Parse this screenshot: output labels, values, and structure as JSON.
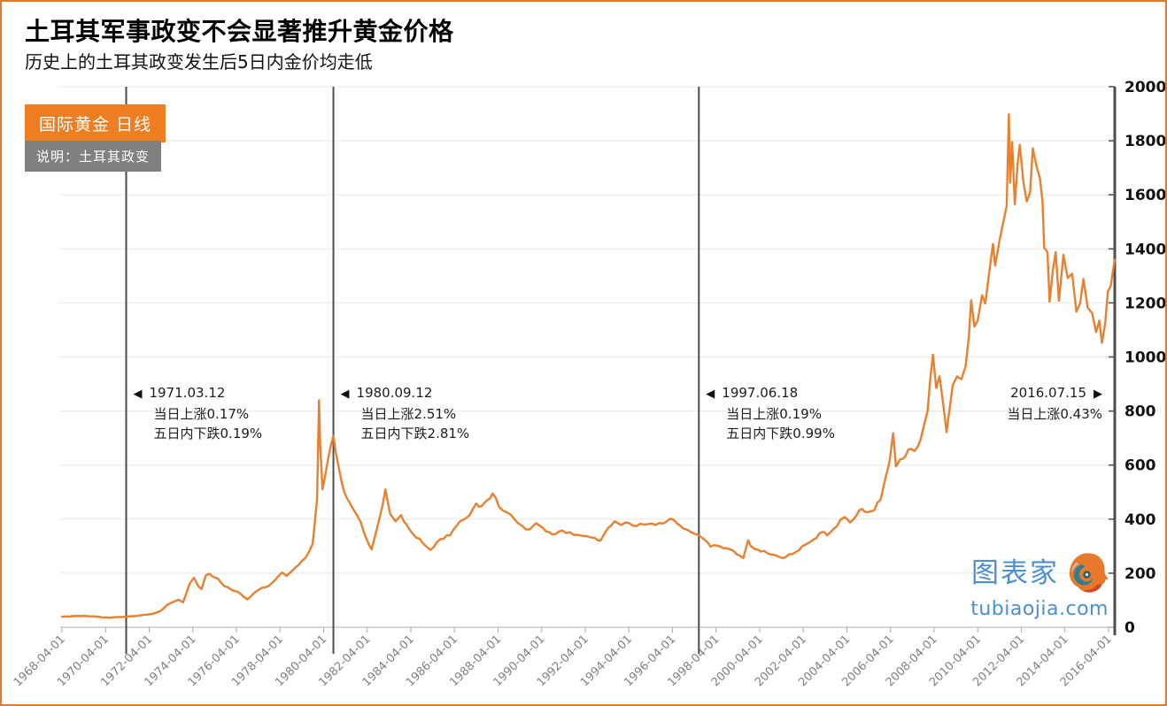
{
  "chart_data": {
    "type": "line",
    "title": "土耳其军事政变不会显著推升黄金价格",
    "subtitle": "历史上的土耳其政变发生后5日内金价均走低",
    "legend": "国际黄金  日线",
    "note": "说明：土耳其政变",
    "ylabel": "",
    "xlabel": "",
    "ylim": [
      0,
      2000
    ],
    "ytick_step": 200,
    "grid": "horizontal",
    "x_domain_years": [
      1968.25,
      2016.537
    ],
    "x_tick_labels": [
      "1968-04-01",
      "1970-04-01",
      "1972-04-01",
      "1974-04-01",
      "1976-04-01",
      "1978-04-01",
      "1980-04-01",
      "1982-04-01",
      "1984-04-01",
      "1986-04-01",
      "1988-04-01",
      "1990-04-01",
      "1992-04-01",
      "1994-04-01",
      "1996-04-01",
      "1998-04-01",
      "2000-04-01",
      "2002-04-01",
      "2004-04-01",
      "2006-04-01",
      "2008-04-01",
      "2010-04-01",
      "2012-04-01",
      "2014-04-01",
      "2016-04-01"
    ],
    "events": [
      {
        "date": "1971.03.12",
        "year": 1971.195,
        "arrow": "left",
        "lines": [
          "当日上涨0.17%",
          "五日内下跌0.19%"
        ]
      },
      {
        "date": "1980.09.12",
        "year": 1980.699,
        "arrow": "left",
        "lines": [
          "当日上涨2.51%",
          "五日内下跌2.81%"
        ]
      },
      {
        "date": "1997.06.18",
        "year": 1997.462,
        "arrow": "left",
        "lines": [
          "当日上涨0.19%",
          "五日内下跌0.99%"
        ]
      },
      {
        "date": "2016.07.15",
        "year": 2016.537,
        "arrow": "right",
        "lines": [
          "当日上涨0.43%"
        ]
      }
    ],
    "series": [
      {
        "name": "国际黄金 日线",
        "color": "#E8802F",
        "points": [
          [
            1968.25,
            39
          ],
          [
            1968.6,
            40
          ],
          [
            1969.0,
            42
          ],
          [
            1969.4,
            41
          ],
          [
            1969.8,
            40
          ],
          [
            1970.1,
            36
          ],
          [
            1970.5,
            36
          ],
          [
            1971.0,
            38
          ],
          [
            1971.2,
            39
          ],
          [
            1971.6,
            41
          ],
          [
            1972.0,
            46
          ],
          [
            1972.4,
            49
          ],
          [
            1972.8,
            62
          ],
          [
            1973.1,
            84
          ],
          [
            1973.4,
            95
          ],
          [
            1973.6,
            102
          ],
          [
            1973.8,
            92
          ],
          [
            1973.95,
            125
          ],
          [
            1974.1,
            160
          ],
          [
            1974.3,
            183
          ],
          [
            1974.5,
            152
          ],
          [
            1974.65,
            141
          ],
          [
            1974.85,
            192
          ],
          [
            1975.0,
            198
          ],
          [
            1975.2,
            186
          ],
          [
            1975.4,
            180
          ],
          [
            1975.7,
            152
          ],
          [
            1976.0,
            140
          ],
          [
            1976.3,
            132
          ],
          [
            1976.55,
            115
          ],
          [
            1976.75,
            103
          ],
          [
            1977.0,
            122
          ],
          [
            1977.3,
            140
          ],
          [
            1977.6,
            148
          ],
          [
            1977.9,
            165
          ],
          [
            1978.15,
            187
          ],
          [
            1978.35,
            203
          ],
          [
            1978.55,
            190
          ],
          [
            1978.85,
            212
          ],
          [
            1979.1,
            230
          ],
          [
            1979.4,
            255
          ],
          [
            1979.6,
            282
          ],
          [
            1979.75,
            310
          ],
          [
            1979.85,
            390
          ],
          [
            1979.95,
            475
          ],
          [
            1980.04,
            840
          ],
          [
            1980.1,
            660
          ],
          [
            1980.2,
            510
          ],
          [
            1980.33,
            565
          ],
          [
            1980.45,
            620
          ],
          [
            1980.6,
            680
          ],
          [
            1980.7,
            708
          ],
          [
            1980.78,
            660
          ],
          [
            1980.95,
            590
          ],
          [
            1981.2,
            500
          ],
          [
            1981.45,
            460
          ],
          [
            1981.7,
            425
          ],
          [
            1981.95,
            390
          ],
          [
            1982.2,
            330
          ],
          [
            1982.45,
            288
          ],
          [
            1982.65,
            350
          ],
          [
            1982.8,
            400
          ],
          [
            1982.95,
            450
          ],
          [
            1983.08,
            510
          ],
          [
            1983.3,
            420
          ],
          [
            1983.55,
            392
          ],
          [
            1983.8,
            415
          ],
          [
            1984.05,
            380
          ],
          [
            1984.35,
            345
          ],
          [
            1984.65,
            328
          ],
          [
            1984.95,
            300
          ],
          [
            1985.15,
            286
          ],
          [
            1985.45,
            315
          ],
          [
            1985.75,
            327
          ],
          [
            1986.05,
            340
          ],
          [
            1986.35,
            375
          ],
          [
            1986.65,
            398
          ],
          [
            1986.95,
            415
          ],
          [
            1987.25,
            458
          ],
          [
            1987.5,
            448
          ],
          [
            1987.75,
            470
          ],
          [
            1988.0,
            495
          ],
          [
            1988.3,
            445
          ],
          [
            1988.65,
            425
          ],
          [
            1989.0,
            400
          ],
          [
            1989.35,
            375
          ],
          [
            1989.7,
            362
          ],
          [
            1990.0,
            385
          ],
          [
            1990.3,
            368
          ],
          [
            1990.6,
            352
          ],
          [
            1990.9,
            345
          ],
          [
            1991.2,
            358
          ],
          [
            1991.55,
            352
          ],
          [
            1991.9,
            342
          ],
          [
            1992.3,
            337
          ],
          [
            1992.7,
            330
          ],
          [
            1992.95,
            320
          ],
          [
            1993.3,
            368
          ],
          [
            1993.6,
            392
          ],
          [
            1993.9,
            378
          ],
          [
            1994.25,
            386
          ],
          [
            1994.6,
            374
          ],
          [
            1994.95,
            380
          ],
          [
            1995.3,
            384
          ],
          [
            1995.65,
            386
          ],
          [
            1995.95,
            390
          ],
          [
            1996.15,
            402
          ],
          [
            1996.45,
            385
          ],
          [
            1996.75,
            365
          ],
          [
            1997.1,
            352
          ],
          [
            1997.462,
            340
          ],
          [
            1997.75,
            322
          ],
          [
            1998.0,
            298
          ],
          [
            1998.3,
            302
          ],
          [
            1998.6,
            292
          ],
          [
            1998.9,
            288
          ],
          [
            1999.2,
            270
          ],
          [
            1999.5,
            256
          ],
          [
            1999.72,
            322
          ],
          [
            1999.85,
            300
          ],
          [
            2000.05,
            288
          ],
          [
            2000.3,
            280
          ],
          [
            2000.6,
            274
          ],
          [
            2000.9,
            268
          ],
          [
            2001.15,
            260
          ],
          [
            2001.3,
            256
          ],
          [
            2001.6,
            270
          ],
          [
            2001.9,
            278
          ],
          [
            2002.2,
            300
          ],
          [
            2002.55,
            315
          ],
          [
            2002.85,
            330
          ],
          [
            2003.1,
            352
          ],
          [
            2003.35,
            340
          ],
          [
            2003.65,
            365
          ],
          [
            2003.95,
            398
          ],
          [
            2004.15,
            408
          ],
          [
            2004.4,
            388
          ],
          [
            2004.7,
            415
          ],
          [
            2004.95,
            438
          ],
          [
            2005.2,
            426
          ],
          [
            2005.5,
            432
          ],
          [
            2005.8,
            472
          ],
          [
            2006.0,
            545
          ],
          [
            2006.2,
            610
          ],
          [
            2006.37,
            718
          ],
          [
            2006.5,
            595
          ],
          [
            2006.7,
            622
          ],
          [
            2006.95,
            635
          ],
          [
            2007.2,
            660
          ],
          [
            2007.5,
            668
          ],
          [
            2007.75,
            735
          ],
          [
            2007.95,
            800
          ],
          [
            2008.2,
            1008
          ],
          [
            2008.35,
            885
          ],
          [
            2008.5,
            928
          ],
          [
            2008.68,
            820
          ],
          [
            2008.82,
            722
          ],
          [
            2008.95,
            800
          ],
          [
            2009.1,
            895
          ],
          [
            2009.3,
            928
          ],
          [
            2009.5,
            918
          ],
          [
            2009.7,
            965
          ],
          [
            2009.85,
            1080
          ],
          [
            2009.95,
            1210
          ],
          [
            2010.1,
            1112
          ],
          [
            2010.25,
            1135
          ],
          [
            2010.45,
            1228
          ],
          [
            2010.6,
            1198
          ],
          [
            2010.8,
            1325
          ],
          [
            2010.95,
            1418
          ],
          [
            2011.05,
            1338
          ],
          [
            2011.25,
            1430
          ],
          [
            2011.45,
            1508
          ],
          [
            2011.58,
            1558
          ],
          [
            2011.68,
            1898
          ],
          [
            2011.74,
            1645
          ],
          [
            2011.83,
            1795
          ],
          [
            2011.95,
            1565
          ],
          [
            2012.08,
            1715
          ],
          [
            2012.18,
            1785
          ],
          [
            2012.35,
            1645
          ],
          [
            2012.5,
            1575
          ],
          [
            2012.65,
            1608
          ],
          [
            2012.78,
            1772
          ],
          [
            2012.95,
            1705
          ],
          [
            2013.1,
            1662
          ],
          [
            2013.22,
            1580
          ],
          [
            2013.3,
            1405
          ],
          [
            2013.45,
            1388
          ],
          [
            2013.55,
            1205
          ],
          [
            2013.7,
            1322
          ],
          [
            2013.83,
            1388
          ],
          [
            2013.98,
            1208
          ],
          [
            2014.18,
            1378
          ],
          [
            2014.38,
            1292
          ],
          [
            2014.58,
            1308
          ],
          [
            2014.78,
            1168
          ],
          [
            2014.95,
            1198
          ],
          [
            2015.1,
            1288
          ],
          [
            2015.3,
            1182
          ],
          [
            2015.5,
            1162
          ],
          [
            2015.68,
            1092
          ],
          [
            2015.83,
            1135
          ],
          [
            2015.95,
            1052
          ],
          [
            2016.1,
            1125
          ],
          [
            2016.22,
            1242
          ],
          [
            2016.35,
            1262
          ],
          [
            2016.45,
            1318
          ],
          [
            2016.537,
            1360
          ]
        ]
      }
    ]
  },
  "watermark": {
    "brand": "图表家",
    "domain": "tubiaojia.com",
    "logo_icon": "tubiaojia-logo"
  },
  "colors": {
    "frame_border": "#E87A26",
    "line": "#E8802F",
    "badge_orange": "#EF7D21",
    "badge_gray": "#808080",
    "event_line": "#4D4D4D",
    "right_axis": "#4D4D4D",
    "grid": "#E8E8E8",
    "baseline": "#CCCCCC",
    "x_tick_label": "#808080",
    "y_tick_label": "#111111",
    "annotation_text": "#1C1C1C",
    "watermark_blue": "#4E8FD0"
  }
}
